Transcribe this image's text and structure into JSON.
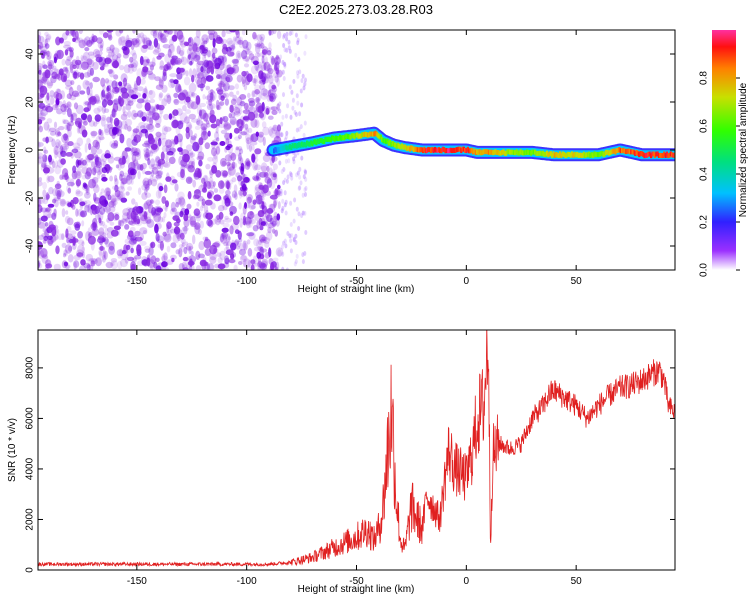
{
  "title": "C2E2.2025.273.03.28.R03",
  "chart_data": [
    {
      "type": "heatmap",
      "name": "spectrogram",
      "xlabel": "Height of straight line (km)",
      "ylabel": "Frequency (Hz)",
      "xlim": [
        -195,
        95
      ],
      "ylim": [
        -50,
        50
      ],
      "xticks": [
        -150,
        -100,
        -50,
        0,
        50
      ],
      "yticks": [
        -40,
        -20,
        0,
        20,
        40
      ],
      "noise_region_x": [
        -195,
        -85
      ],
      "scattered_noise_x": [
        -85,
        -73
      ],
      "trace": {
        "x": [
          -88,
          -82,
          -70,
          -60,
          -50,
          -42,
          -38,
          -33,
          -28,
          -20,
          -10,
          0,
          5,
          10,
          20,
          30,
          40,
          50,
          60,
          70,
          80,
          95
        ],
        "freq": [
          0,
          1,
          3,
          5,
          6,
          7,
          4,
          2,
          1,
          0,
          0,
          0,
          -1,
          -1,
          -1,
          -1,
          -2,
          -2,
          -2,
          0,
          -2,
          -2
        ],
        "amplitude": [
          0.25,
          0.45,
          0.55,
          0.6,
          0.7,
          0.85,
          0.6,
          0.7,
          0.75,
          0.95,
          0.98,
          0.95,
          0.8,
          0.85,
          0.7,
          0.65,
          0.8,
          0.75,
          0.65,
          0.9,
          0.95,
          0.95
        ]
      },
      "colorbar": {
        "label": "Normalized spectral amplitude",
        "range": [
          0,
          1
        ],
        "ticks": [
          "0.0",
          "0.2",
          "0.4",
          "0.6",
          "0.8"
        ],
        "colormap": "rainbow"
      }
    },
    {
      "type": "line",
      "name": "snr",
      "xlabel": "Height of straight line (km)",
      "ylabel": "SNR (10 * v/v)",
      "xlim": [
        -195,
        95
      ],
      "ylim": [
        0,
        9500
      ],
      "xticks": [
        -150,
        -100,
        -50,
        0,
        50
      ],
      "yticks": [
        0,
        2000,
        4000,
        6000,
        8000
      ],
      "series": [
        {
          "name": "SNR",
          "color": "#e02020",
          "x": [
            -195,
            -90,
            -80,
            -75,
            -70,
            -65,
            -60,
            -55,
            -50,
            -45,
            -42,
            -40,
            -38,
            -36,
            -34,
            -32,
            -30,
            -28,
            -25,
            -20,
            -18,
            -15,
            -12,
            -10,
            -8,
            -5,
            0,
            3,
            5,
            8,
            10,
            11,
            12,
            15,
            20,
            25,
            30,
            35,
            38,
            40,
            45,
            50,
            55,
            60,
            65,
            70,
            75,
            80,
            85,
            88,
            90,
            92,
            95
          ],
          "y": [
            230,
            230,
            300,
            400,
            500,
            700,
            900,
            1100,
            1300,
            1600,
            1200,
            1600,
            2400,
            4500,
            6500,
            3000,
            1200,
            800,
            2500,
            1600,
            3000,
            2500,
            2000,
            3500,
            4700,
            4000,
            3600,
            4800,
            6000,
            6500,
            9500,
            900,
            4500,
            5000,
            4800,
            5000,
            6000,
            6500,
            7000,
            7100,
            6800,
            6500,
            6000,
            6500,
            6900,
            7200,
            7300,
            7500,
            7800,
            7900,
            7500,
            6500,
            6200
          ]
        }
      ]
    }
  ]
}
